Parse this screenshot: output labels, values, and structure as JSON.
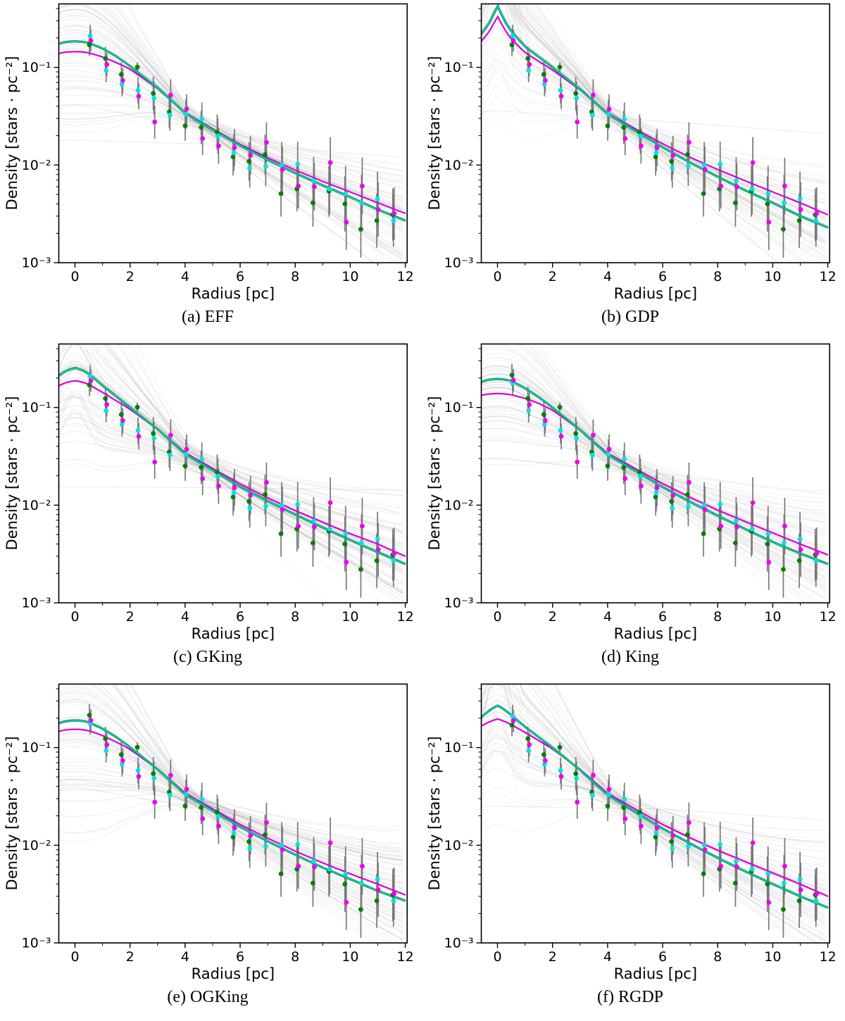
{
  "figure": {
    "background": "#ffffff",
    "columns": 2,
    "rows": 3
  },
  "colors": {
    "green": "#0b7d0b",
    "cyan_dot": "#00e2e2",
    "cyan_curve": "#00c9c9",
    "magenta_dot": "#ee00ee",
    "magenta_curve": "#dc00dc",
    "green_curve": "#0b7d0b",
    "error_bar": "#787878",
    "samples": "#8a8a8a",
    "axis": "#000000"
  },
  "chart_data": {
    "type": "scatter+line, 6 panels, semilog-y",
    "title": "",
    "xlabel": "Radius [pc]",
    "ylabel": "Density [stars · pc⁻²]",
    "xlim": [
      -0.59,
      12.07
    ],
    "ylim": [
      0.001,
      0.447
    ],
    "grid": false,
    "legend": "none",
    "x_ticks": [
      0,
      2,
      4,
      6,
      8,
      10,
      12
    ],
    "x_minor_ticks": [
      1,
      3,
      5,
      7,
      9,
      11
    ],
    "y_tick_labels": [
      "10⁻¹",
      "10⁻²",
      "10⁻³"
    ],
    "y_tick_values": [
      0.1,
      0.01,
      0.001
    ],
    "radii": [
      0.55,
      1.13,
      1.71,
      2.29,
      2.87,
      3.45,
      4.03,
      4.61,
      5.19,
      5.77,
      6.35,
      6.93,
      7.51,
      8.09,
      8.67,
      9.25,
      9.83,
      10.41,
      10.99,
      11.57
    ],
    "series": [
      {
        "name": "green",
        "values": [
          0.17,
          0.1235,
          0.0847,
          0.1007,
          0.0541,
          0.035,
          0.0252,
          0.0243,
          0.0217,
          0.0121,
          0.0109,
          0.0128,
          0.0051,
          0.0057,
          0.0041,
          0.0054,
          0.004,
          0.0022,
          0.0027,
          0.0031
        ]
      },
      {
        "name": "cyan",
        "values": [
          0.21,
          0.0931,
          0.0676,
          0.0582,
          0.0485,
          0.0325,
          0.0331,
          0.0295,
          0.0198,
          0.0134,
          0.0093,
          0.0097,
          0.01,
          0.0102,
          0.0069,
          0.0057,
          0.0051,
          0.0041,
          0.0045,
          0.0027
        ]
      },
      {
        "name": "magenta",
        "values": [
          0.188,
          0.107,
          0.0735,
          0.0506,
          0.0276,
          0.0521,
          0.0374,
          0.0187,
          0.0157,
          0.0151,
          0.0126,
          0.0171,
          0.009,
          0.0061,
          0.006,
          0.0106,
          0.0026,
          0.0061,
          0.0035,
          0.0032
        ]
      }
    ],
    "error_factors": [
      1.3,
      1.32,
      1.34,
      1.36,
      1.48,
      1.45,
      1.42,
      1.48,
      1.52,
      1.55,
      1.58,
      1.6,
      1.72,
      1.7,
      1.75,
      1.82,
      1.92,
      1.95,
      1.9,
      1.85
    ],
    "error_overrides": [
      {
        "series": "green",
        "index": 3,
        "factor": 1.12
      }
    ],
    "curve_anchor_radii": [
      0,
      0.25,
      0.5,
      1,
      1.5,
      2,
      3,
      4,
      5,
      6,
      7,
      8,
      9,
      10,
      11,
      12
    ],
    "panels": [
      {
        "key": "a",
        "model": "EFF",
        "caption": "(a) EFF",
        "curves": {
          "cyan": [
            0.185,
            0.183,
            0.178,
            0.156,
            0.13,
            0.103,
            0.062,
            0.034,
            0.023,
            0.0158,
            0.0113,
            0.0083,
            0.0062,
            0.0047,
            0.0035,
            0.0027
          ],
          "magenta": [
            0.145,
            0.144,
            0.141,
            0.128,
            0.112,
            0.096,
            0.061,
            0.0345,
            0.0235,
            0.0163,
            0.0119,
            0.0089,
            0.0068,
            0.0053,
            0.0041,
            0.0032
          ]
        },
        "first_cluster_override": null,
        "samples": {
          "count": 75,
          "core_sigma": 0.4,
          "tail_sigma": 0.24,
          "cusp": 0,
          "seed": 11,
          "flat_outliers": [
            [
              0.018,
              0.016,
              0.012
            ],
            [
              0.042,
              0.02,
              0.0085
            ]
          ]
        }
      },
      {
        "key": "b",
        "model": "GDP",
        "caption": "(b) GDP",
        "curves": {
          "cyan": [
            0.43,
            0.3,
            0.235,
            0.163,
            0.128,
            0.1,
            0.06,
            0.0335,
            0.0225,
            0.0152,
            0.0106,
            0.0076,
            0.0055,
            0.0041,
            0.003,
            0.0023
          ],
          "magenta": [
            0.335,
            0.245,
            0.196,
            0.142,
            0.115,
            0.094,
            0.059,
            0.034,
            0.0235,
            0.0165,
            0.012,
            0.009,
            0.0069,
            0.0053,
            0.0041,
            0.0031
          ]
        },
        "first_cluster_override": null,
        "samples": {
          "count": 75,
          "core_sigma": 0.42,
          "tail_sigma": 0.27,
          "cusp": 0.85,
          "seed": 22,
          "flat_outliers": [
            [
              0.036,
              0.028,
              0.021
            ]
          ]
        }
      },
      {
        "key": "c",
        "model": "GKing",
        "caption": "(c) GKing",
        "curves": {
          "cyan": [
            0.255,
            0.243,
            0.222,
            0.168,
            0.13,
            0.1,
            0.06,
            0.0335,
            0.0228,
            0.0155,
            0.011,
            0.008,
            0.0059,
            0.0044,
            0.0033,
            0.0025
          ],
          "magenta": [
            0.188,
            0.183,
            0.172,
            0.143,
            0.117,
            0.096,
            0.06,
            0.0345,
            0.0238,
            0.0165,
            0.0119,
            0.0088,
            0.0067,
            0.0051,
            0.004,
            0.003
          ]
        },
        "first_cluster_override": null,
        "samples": {
          "count": 80,
          "core_sigma": 0.48,
          "tail_sigma": 0.3,
          "cusp": 0.2,
          "seed": 33,
          "flat_outliers": [
            [
              0.0155,
              0.015,
              0.0142
            ],
            [
              0.046,
              0.021,
              0.008
            ]
          ]
        }
      },
      {
        "key": "d",
        "model": "King",
        "caption": "(d) King",
        "curves": {
          "cyan": [
            0.196,
            0.194,
            0.187,
            0.158,
            0.128,
            0.1,
            0.059,
            0.033,
            0.0225,
            0.0153,
            0.0108,
            0.0078,
            0.0057,
            0.0042,
            0.0032,
            0.0025
          ],
          "magenta": [
            0.139,
            0.138,
            0.135,
            0.124,
            0.11,
            0.094,
            0.059,
            0.034,
            0.0237,
            0.0166,
            0.012,
            0.0089,
            0.0068,
            0.0052,
            0.004,
            0.0031
          ]
        },
        "first_cluster_override": {
          "green": 0.215,
          "cyan": 0.177,
          "magenta": 0.19
        },
        "samples": {
          "count": 72,
          "core_sigma": 0.33,
          "tail_sigma": 0.3,
          "cusp": 0,
          "seed": 44,
          "flat_outliers": [
            [
              0.031,
              0.019,
              0.008
            ],
            [
              0.03,
              0.021,
              0.013
            ]
          ]
        }
      },
      {
        "key": "e",
        "model": "OGKing",
        "caption": "(e) OGKing",
        "curves": {
          "cyan": [
            0.19,
            0.188,
            0.182,
            0.156,
            0.128,
            0.101,
            0.06,
            0.0332,
            0.0226,
            0.0154,
            0.011,
            0.008,
            0.0059,
            0.0045,
            0.0034,
            0.0027
          ],
          "magenta": [
            0.154,
            0.153,
            0.149,
            0.133,
            0.114,
            0.096,
            0.06,
            0.0342,
            0.0236,
            0.0163,
            0.0118,
            0.0087,
            0.0066,
            0.0051,
            0.004,
            0.0031
          ]
        },
        "first_cluster_override": {
          "green": 0.215,
          "cyan": 0.177,
          "magenta": 0.19
        },
        "samples": {
          "count": 80,
          "core_sigma": 0.48,
          "tail_sigma": 0.27,
          "cusp": 0,
          "seed": 55,
          "flat_outliers": [
            [
              0.04,
              0.02,
              0.0085
            ],
            [
              0.048,
              0.022,
              0.009
            ]
          ]
        }
      },
      {
        "key": "f",
        "model": "RGDP",
        "caption": "(f) RGDP",
        "curves": {
          "cyan": [
            0.27,
            0.245,
            0.215,
            0.163,
            0.128,
            0.1,
            0.059,
            0.0327,
            0.022,
            0.0148,
            0.0104,
            0.0074,
            0.0054,
            0.004,
            0.003,
            0.0023
          ],
          "magenta": [
            0.197,
            0.186,
            0.172,
            0.143,
            0.118,
            0.097,
            0.06,
            0.034,
            0.0235,
            0.0163,
            0.0119,
            0.0089,
            0.0068,
            0.0052,
            0.004,
            0.003
          ]
        },
        "first_cluster_override": null,
        "samples": {
          "count": 75,
          "core_sigma": 0.45,
          "tail_sigma": 0.3,
          "cusp": 0.8,
          "seed": 66,
          "flat_outliers": [
            [
              0.025,
              0.0235,
              0.018
            ]
          ]
        }
      }
    ]
  }
}
